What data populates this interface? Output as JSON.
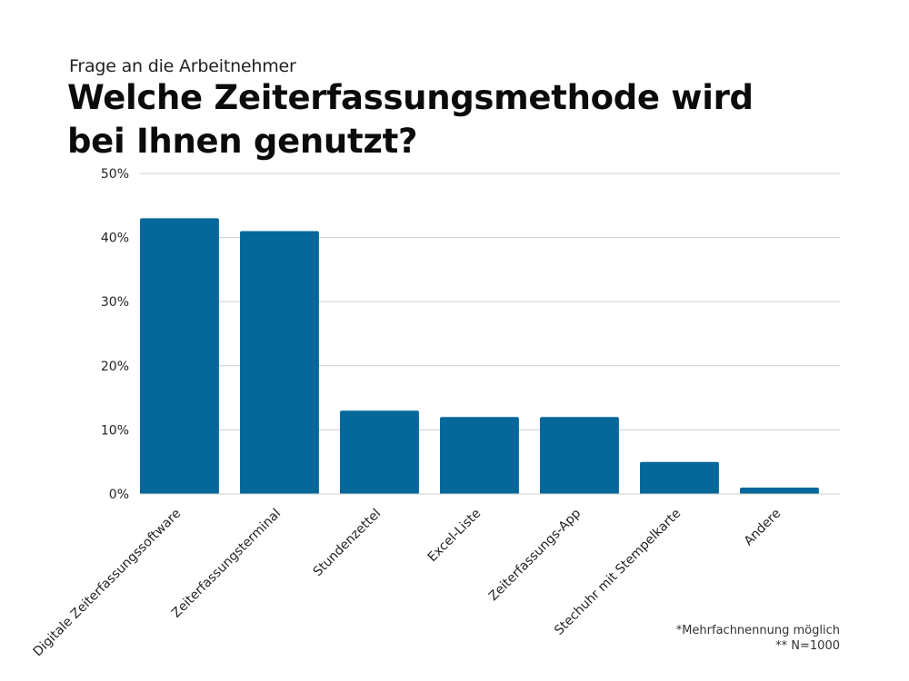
{
  "header": {
    "subtitle": "Frage an die Arbeitnehmer",
    "title": "Welche Zeiterfassungsmethode wird bei Ihnen genutzt?"
  },
  "notes": {
    "line1": "*Mehrfachnennung möglich",
    "line2": "** N=1000"
  },
  "colors": {
    "bar": "#06689a",
    "grid": "#cfcfcf",
    "axis_text": "#222222"
  },
  "chart_data": {
    "type": "bar",
    "title": "Welche Zeiterfassungsmethode wird bei Ihnen genutzt?",
    "subtitle": "Frage an die Arbeitnehmer",
    "categories": [
      "Digitale Zeiterfassungssoftware",
      "Zeiterfassungsterminal",
      "Stundenzettel",
      "Excel-Liste",
      "Zeiterfassungs-App",
      "Stechuhr mit Stempelkarte",
      "Andere"
    ],
    "values": [
      43,
      41,
      13,
      12,
      12,
      5,
      1
    ],
    "unit": "%",
    "ylim": [
      0,
      50
    ],
    "yticks": [
      0,
      10,
      20,
      30,
      40,
      50
    ],
    "ytick_labels": [
      "0%",
      "10%",
      "20%",
      "30%",
      "40%",
      "50%"
    ],
    "grid": true,
    "legend": "none",
    "xlabel": "",
    "ylabel": ""
  }
}
